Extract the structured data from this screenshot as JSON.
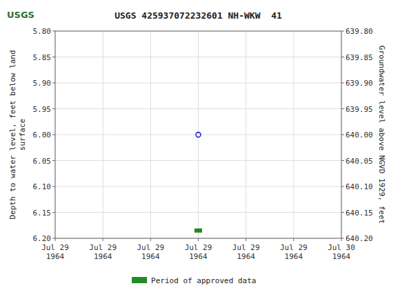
{
  "chart_data": {
    "type": "scatter",
    "title": "USGS 425937072232601 NH-WKW  41",
    "annotations": [
      {
        "text": "USGS"
      }
    ],
    "ylabel": "Depth to water level, feet below land\nsurface",
    "y2label": "Groundwater level above NGVD 1929, feet",
    "categories": [
      "Jul 29\n1964",
      "Jul 29\n1964",
      "Jul 29\n1964",
      "Jul 29\n1964",
      "Jul 29\n1964",
      "Jul 29\n1964",
      "Jul 30\n1964"
    ],
    "series": [
      {
        "values": [
          null,
          null,
          null,
          6.0,
          null,
          null,
          null
        ],
        "color": "#0000cc",
        "marker": "circle"
      },
      {
        "name": "Period of approved data",
        "values": [
          null,
          null,
          null,
          6.185,
          null,
          null,
          null
        ],
        "color": "#228b22",
        "marker": "dash"
      }
    ],
    "ylim": [
      6.2,
      5.8
    ],
    "yticks": [
      {
        "value": 5.8,
        "label": "5.80"
      },
      5.85,
      {
        "value": 5.9,
        "label": "5.90"
      },
      5.95,
      {
        "value": 6.0,
        "label": "6.00"
      },
      6.05,
      {
        "value": 6.1,
        "label": "6.10"
      },
      6.15,
      {
        "value": 6.2,
        "label": "6.20"
      }
    ],
    "y2lim": [
      640.2,
      639.8
    ],
    "y2ticks": [
      {
        "value": 639.8,
        "label": "639.80"
      },
      639.85,
      {
        "value": 639.9,
        "label": "639.90"
      },
      639.95,
      {
        "value": 640.0,
        "label": "640.00"
      },
      640.05,
      {
        "value": 640.1,
        "label": "640.10"
      },
      640.15,
      {
        "value": 640.2,
        "label": "640.20"
      }
    ],
    "grid": true,
    "legend": "bottom"
  }
}
